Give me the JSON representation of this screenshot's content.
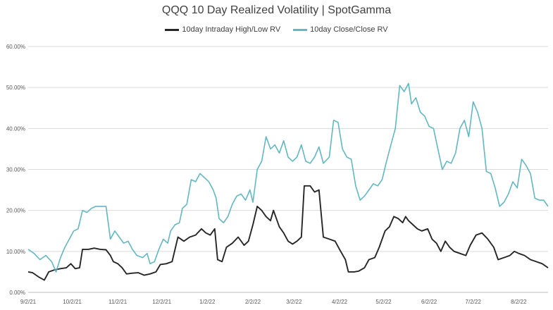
{
  "chart_data": {
    "type": "line",
    "title": "QQQ 10 Day Realized Volatility | SpotGamma",
    "xlabel": "",
    "ylabel": "",
    "ylim": [
      0,
      60
    ],
    "y_ticks": [
      "0.00%",
      "10.00%",
      "20.00%",
      "30.00%",
      "40.00%",
      "50.00%",
      "60.00%"
    ],
    "x_ticks": [
      "9/2/21",
      "10/2/21",
      "11/2/21",
      "12/2/21",
      "1/2/22",
      "2/2/22",
      "3/2/22",
      "4/2/22",
      "5/2/22",
      "6/2/22",
      "7/2/22",
      "8/2/22"
    ],
    "x_range": [
      "2021-09-02",
      "2022-08-22"
    ],
    "grid": "horizontal",
    "legend_position": "top",
    "series": [
      {
        "name": "10day Intraday High/Low RV",
        "color": "#262626",
        "points": [
          [
            "2021-09-02",
            5.0
          ],
          [
            "2021-09-05",
            4.8
          ],
          [
            "2021-09-09",
            3.8
          ],
          [
            "2021-09-13",
            3.0
          ],
          [
            "2021-09-16",
            5.0
          ],
          [
            "2021-09-20",
            5.5
          ],
          [
            "2021-09-24",
            5.8
          ],
          [
            "2021-09-28",
            6.0
          ],
          [
            "2021-10-01",
            7.0
          ],
          [
            "2021-10-04",
            5.8
          ],
          [
            "2021-10-07",
            6.0
          ],
          [
            "2021-10-09",
            10.5
          ],
          [
            "2021-10-13",
            10.5
          ],
          [
            "2021-10-17",
            10.8
          ],
          [
            "2021-10-21",
            10.5
          ],
          [
            "2021-10-25",
            10.4
          ],
          [
            "2021-10-28",
            9.0
          ],
          [
            "2021-10-30",
            7.5
          ],
          [
            "2021-11-02",
            7.0
          ],
          [
            "2021-11-05",
            6.0
          ],
          [
            "2021-11-08",
            4.5
          ],
          [
            "2021-11-12",
            4.7
          ],
          [
            "2021-11-16",
            4.8
          ],
          [
            "2021-11-20",
            4.2
          ],
          [
            "2021-11-24",
            4.5
          ],
          [
            "2021-11-28",
            5.0
          ],
          [
            "2021-12-01",
            6.8
          ],
          [
            "2021-12-05",
            7.0
          ],
          [
            "2021-12-09",
            7.5
          ],
          [
            "2021-12-13",
            13.5
          ],
          [
            "2021-12-17",
            12.5
          ],
          [
            "2021-12-21",
            13.5
          ],
          [
            "2021-12-25",
            14.0
          ],
          [
            "2021-12-29",
            15.5
          ],
          [
            "2022-01-01",
            14.5
          ],
          [
            "2022-01-04",
            14.0
          ],
          [
            "2022-01-07",
            15.5
          ],
          [
            "2022-01-09",
            8.0
          ],
          [
            "2022-01-12",
            7.5
          ],
          [
            "2022-01-15",
            11.0
          ],
          [
            "2022-01-19",
            12.0
          ],
          [
            "2022-01-23",
            13.5
          ],
          [
            "2022-01-27",
            11.5
          ],
          [
            "2022-01-30",
            12.5
          ],
          [
            "2022-02-02",
            16.5
          ],
          [
            "2022-02-05",
            21.0
          ],
          [
            "2022-02-08",
            20.0
          ],
          [
            "2022-02-11",
            18.5
          ],
          [
            "2022-02-14",
            17.5
          ],
          [
            "2022-02-16",
            20.0
          ],
          [
            "2022-02-20",
            16.0
          ],
          [
            "2022-02-23",
            14.5
          ],
          [
            "2022-02-26",
            12.5
          ],
          [
            "2022-03-01",
            11.8
          ],
          [
            "2022-03-04",
            12.5
          ],
          [
            "2022-03-07",
            13.5
          ],
          [
            "2022-03-09",
            26.0
          ],
          [
            "2022-03-13",
            26.0
          ],
          [
            "2022-03-16",
            24.5
          ],
          [
            "2022-03-19",
            25.0
          ],
          [
            "2022-03-22",
            13.5
          ],
          [
            "2022-03-26",
            13.0
          ],
          [
            "2022-03-30",
            12.5
          ],
          [
            "2022-04-02",
            10.5
          ],
          [
            "2022-04-06",
            8.0
          ],
          [
            "2022-04-08",
            5.0
          ],
          [
            "2022-04-12",
            5.0
          ],
          [
            "2022-04-15",
            5.2
          ],
          [
            "2022-04-19",
            6.0
          ],
          [
            "2022-04-22",
            8.0
          ],
          [
            "2022-04-26",
            8.5
          ],
          [
            "2022-04-29",
            11.0
          ],
          [
            "2022-05-03",
            15.0
          ],
          [
            "2022-05-06",
            16.0
          ],
          [
            "2022-05-09",
            18.5
          ],
          [
            "2022-05-12",
            18.0
          ],
          [
            "2022-05-15",
            17.0
          ],
          [
            "2022-05-17",
            18.5
          ],
          [
            "2022-05-19",
            17.5
          ],
          [
            "2022-05-22",
            16.5
          ],
          [
            "2022-05-25",
            15.5
          ],
          [
            "2022-05-28",
            15.0
          ],
          [
            "2022-06-01",
            15.5
          ],
          [
            "2022-06-04",
            13.0
          ],
          [
            "2022-06-07",
            12.0
          ],
          [
            "2022-06-10",
            10.0
          ],
          [
            "2022-06-13",
            12.5
          ],
          [
            "2022-06-16",
            11.0
          ],
          [
            "2022-06-19",
            10.0
          ],
          [
            "2022-06-23",
            9.5
          ],
          [
            "2022-06-27",
            9.0
          ],
          [
            "2022-06-30",
            11.5
          ],
          [
            "2022-07-04",
            14.0
          ],
          [
            "2022-07-08",
            14.5
          ],
          [
            "2022-07-12",
            13.0
          ],
          [
            "2022-07-16",
            11.0
          ],
          [
            "2022-07-19",
            8.0
          ],
          [
            "2022-07-23",
            8.5
          ],
          [
            "2022-07-27",
            9.0
          ],
          [
            "2022-07-30",
            10.0
          ],
          [
            "2022-08-02",
            9.5
          ],
          [
            "2022-08-06",
            9.0
          ],
          [
            "2022-08-10",
            8.0
          ],
          [
            "2022-08-14",
            7.5
          ],
          [
            "2022-08-18",
            7.0
          ],
          [
            "2022-08-22",
            6.0
          ]
        ]
      },
      {
        "name": "10day Close/Close RV",
        "color": "#62b7c0",
        "points": [
          [
            "2021-09-02",
            10.5
          ],
          [
            "2021-09-06",
            9.5
          ],
          [
            "2021-09-10",
            8.0
          ],
          [
            "2021-09-14",
            9.0
          ],
          [
            "2021-09-18",
            7.5
          ],
          [
            "2021-09-21",
            5.0
          ],
          [
            "2021-09-24",
            8.5
          ],
          [
            "2021-09-27",
            11.0
          ],
          [
            "2021-09-30",
            13.0
          ],
          [
            "2021-10-03",
            15.0
          ],
          [
            "2021-10-06",
            15.5
          ],
          [
            "2021-10-09",
            20.0
          ],
          [
            "2021-10-12",
            19.5
          ],
          [
            "2021-10-15",
            20.5
          ],
          [
            "2021-10-18",
            21.0
          ],
          [
            "2021-10-22",
            21.0
          ],
          [
            "2021-10-25",
            21.0
          ],
          [
            "2021-10-28",
            13.0
          ],
          [
            "2021-10-31",
            15.0
          ],
          [
            "2021-11-03",
            13.5
          ],
          [
            "2021-11-06",
            12.0
          ],
          [
            "2021-11-09",
            12.5
          ],
          [
            "2021-11-12",
            10.5
          ],
          [
            "2021-11-15",
            9.0
          ],
          [
            "2021-11-19",
            8.5
          ],
          [
            "2021-11-22",
            9.5
          ],
          [
            "2021-11-24",
            7.0
          ],
          [
            "2021-11-27",
            7.5
          ],
          [
            "2021-11-30",
            10.5
          ],
          [
            "2021-12-03",
            13.0
          ],
          [
            "2021-12-06",
            12.0
          ],
          [
            "2021-12-08",
            15.0
          ],
          [
            "2021-12-11",
            16.5
          ],
          [
            "2021-12-14",
            17.0
          ],
          [
            "2021-12-16",
            20.5
          ],
          [
            "2021-12-19",
            21.5
          ],
          [
            "2021-12-22",
            27.5
          ],
          [
            "2021-12-25",
            27.0
          ],
          [
            "2021-12-28",
            29.0
          ],
          [
            "2021-12-31",
            28.0
          ],
          [
            "2022-01-03",
            27.0
          ],
          [
            "2022-01-06",
            25.0
          ],
          [
            "2022-01-08",
            23.0
          ],
          [
            "2022-01-10",
            18.0
          ],
          [
            "2022-01-13",
            17.0
          ],
          [
            "2022-01-16",
            18.5
          ],
          [
            "2022-01-19",
            21.5
          ],
          [
            "2022-01-22",
            23.5
          ],
          [
            "2022-01-25",
            24.0
          ],
          [
            "2022-01-28",
            22.5
          ],
          [
            "2022-01-31",
            25.0
          ],
          [
            "2022-02-02",
            22.0
          ],
          [
            "2022-02-05",
            30.0
          ],
          [
            "2022-02-08",
            32.0
          ],
          [
            "2022-02-11",
            38.0
          ],
          [
            "2022-02-14",
            35.0
          ],
          [
            "2022-02-17",
            36.0
          ],
          [
            "2022-02-20",
            34.0
          ],
          [
            "2022-02-23",
            37.0
          ],
          [
            "2022-02-26",
            33.0
          ],
          [
            "2022-03-01",
            32.0
          ],
          [
            "2022-03-04",
            33.0
          ],
          [
            "2022-03-07",
            36.0
          ],
          [
            "2022-03-10",
            32.0
          ],
          [
            "2022-03-13",
            31.5
          ],
          [
            "2022-03-16",
            33.0
          ],
          [
            "2022-03-19",
            35.5
          ],
          [
            "2022-03-22",
            31.5
          ],
          [
            "2022-03-26",
            33.0
          ],
          [
            "2022-03-29",
            42.0
          ],
          [
            "2022-04-01",
            41.5
          ],
          [
            "2022-04-04",
            35.0
          ],
          [
            "2022-04-07",
            33.0
          ],
          [
            "2022-04-10",
            32.5
          ],
          [
            "2022-04-13",
            26.0
          ],
          [
            "2022-04-16",
            22.5
          ],
          [
            "2022-04-19",
            23.5
          ],
          [
            "2022-04-22",
            25.0
          ],
          [
            "2022-04-25",
            26.5
          ],
          [
            "2022-04-28",
            26.0
          ],
          [
            "2022-05-01",
            27.5
          ],
          [
            "2022-05-04",
            32.0
          ],
          [
            "2022-05-07",
            36.0
          ],
          [
            "2022-05-10",
            40.0
          ],
          [
            "2022-05-13",
            50.5
          ],
          [
            "2022-05-16",
            49.0
          ],
          [
            "2022-05-19",
            51.0
          ],
          [
            "2022-05-21",
            46.0
          ],
          [
            "2022-05-24",
            47.5
          ],
          [
            "2022-05-27",
            44.0
          ],
          [
            "2022-05-30",
            43.0
          ],
          [
            "2022-06-02",
            40.5
          ],
          [
            "2022-06-05",
            40.0
          ],
          [
            "2022-06-08",
            35.0
          ],
          [
            "2022-06-11",
            30.0
          ],
          [
            "2022-06-14",
            32.0
          ],
          [
            "2022-06-17",
            31.5
          ],
          [
            "2022-06-20",
            34.0
          ],
          [
            "2022-06-23",
            40.0
          ],
          [
            "2022-06-26",
            42.0
          ],
          [
            "2022-06-29",
            38.0
          ],
          [
            "2022-07-02",
            46.5
          ],
          [
            "2022-07-05",
            44.0
          ],
          [
            "2022-07-08",
            40.0
          ],
          [
            "2022-07-11",
            29.5
          ],
          [
            "2022-07-14",
            29.0
          ],
          [
            "2022-07-17",
            25.5
          ],
          [
            "2022-07-20",
            21.0
          ],
          [
            "2022-07-23",
            22.0
          ],
          [
            "2022-07-26",
            24.0
          ],
          [
            "2022-07-29",
            27.0
          ],
          [
            "2022-08-01",
            25.5
          ],
          [
            "2022-08-04",
            32.5
          ],
          [
            "2022-08-07",
            31.0
          ],
          [
            "2022-08-10",
            29.0
          ],
          [
            "2022-08-13",
            23.0
          ],
          [
            "2022-08-16",
            22.5
          ],
          [
            "2022-08-19",
            22.5
          ],
          [
            "2022-08-22",
            21.0
          ]
        ]
      }
    ]
  }
}
